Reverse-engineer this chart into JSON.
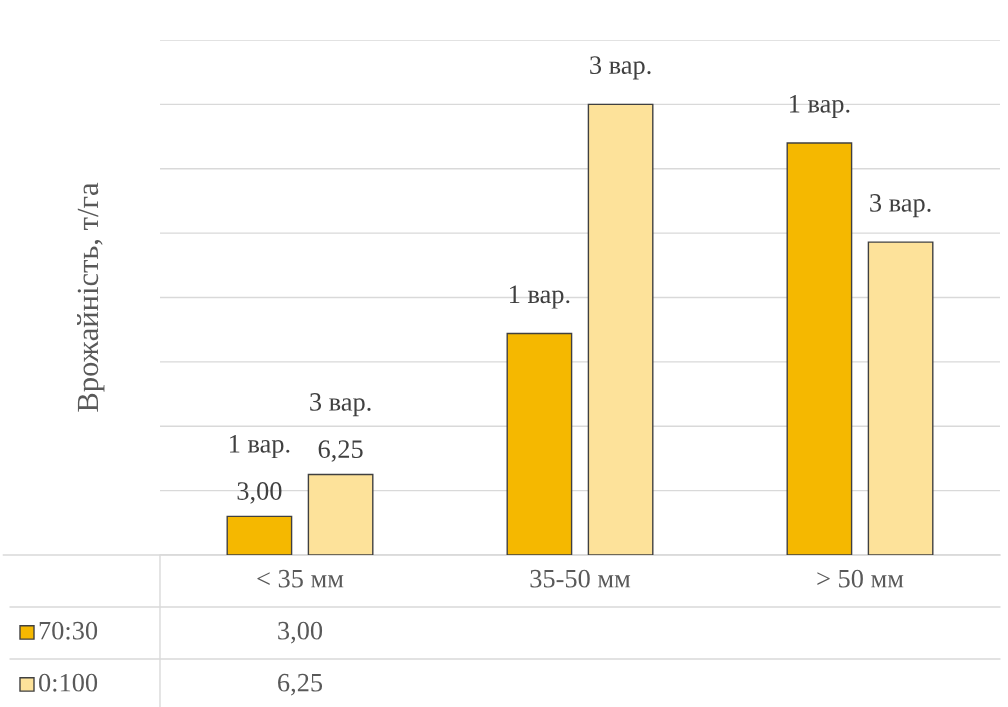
{
  "chart_data": {
    "type": "bar",
    "ylabel": "Врожайність, т/га",
    "categories": [
      "< 35 мм",
      "35-50 мм",
      "> 50 мм"
    ],
    "series": [
      {
        "name": "70:30",
        "color": "#f5b800",
        "values": [
          3.0,
          17.2,
          32.0
        ],
        "value_labels": [
          "3,00",
          null,
          null
        ]
      },
      {
        "name": "0:100",
        "color": "#fde29a",
        "values": [
          6.25,
          35.0,
          24.3
        ],
        "value_labels": [
          "6,25",
          null,
          null
        ]
      }
    ],
    "ylim": [
      0,
      40
    ],
    "yticks": [
      {
        "value": 0,
        "label": null
      },
      {
        "value": 5,
        "label": null
      },
      {
        "value": 10,
        "label": null
      },
      {
        "value": 15,
        "label": null
      },
      {
        "value": 20,
        "label": null
      },
      {
        "value": 25,
        "label": null
      },
      {
        "value": 30,
        "label": null
      },
      {
        "value": 35,
        "label": null
      },
      {
        "value": 40,
        "label": null
      }
    ],
    "grid": "y",
    "tick_labels": "x",
    "data_labels": false,
    "annotations": [
      "1 вар.",
      "3 вар.",
      "1 вар.",
      "3 вар.",
      "1 вар.",
      "3 вар."
    ],
    "legend": "bottom left"
  }
}
